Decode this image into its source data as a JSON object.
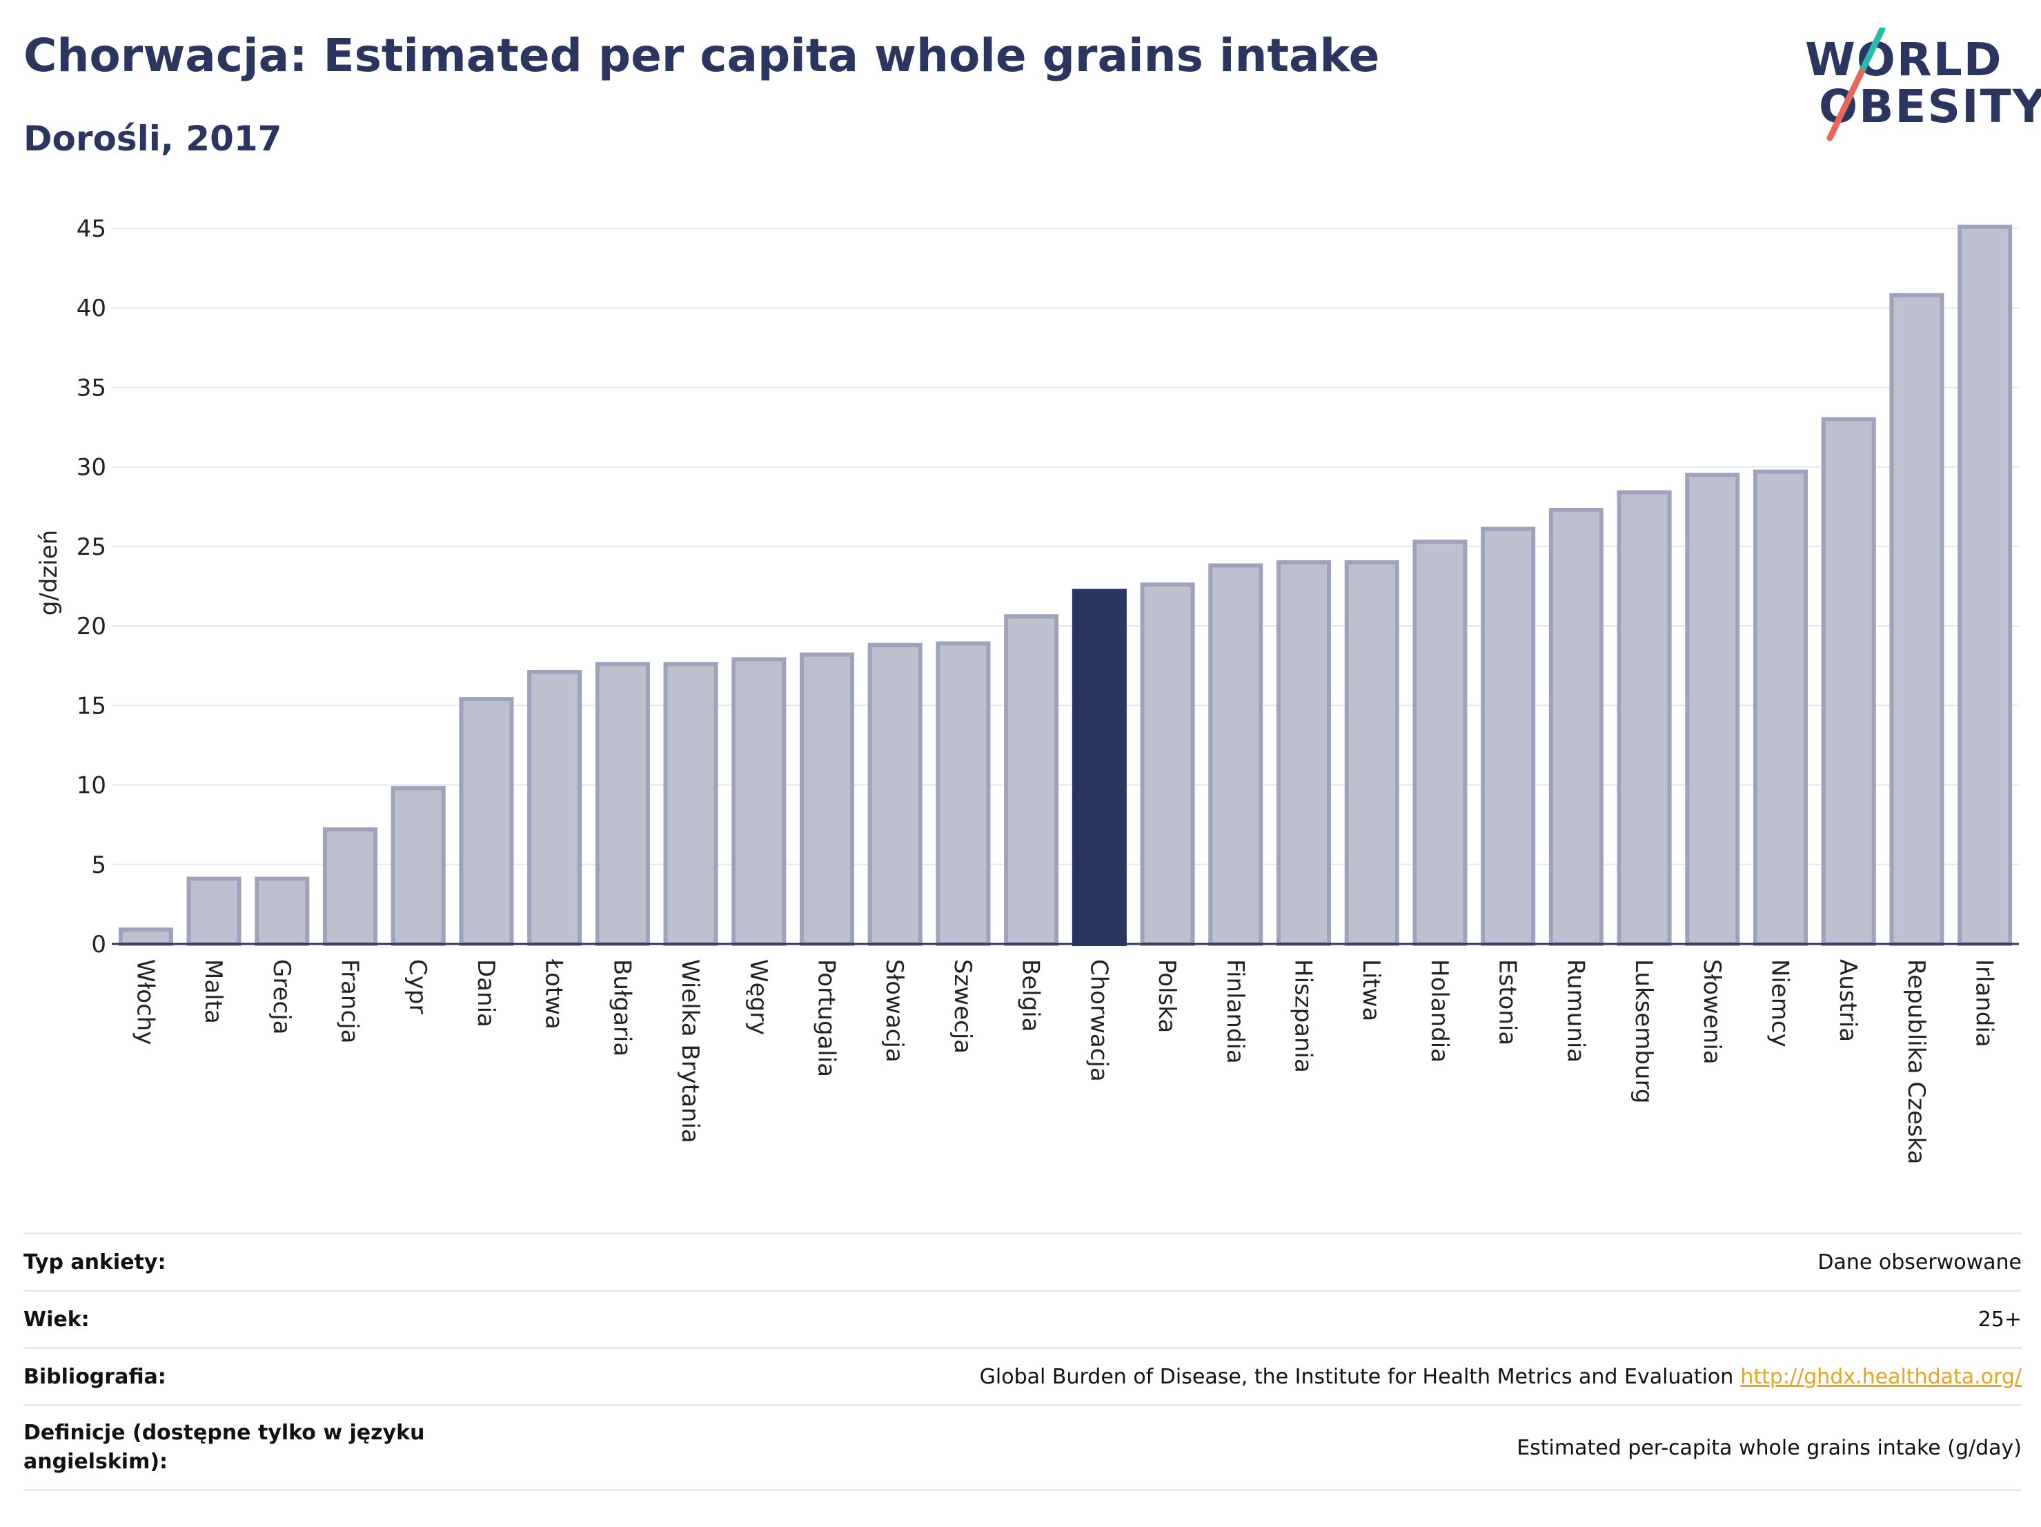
{
  "header": {
    "title": "Chorwacja: Estimated per capita whole grains intake",
    "subtitle": "Dorośli, 2017"
  },
  "logo": {
    "line1": "WORLD",
    "line2": "OBESITY",
    "colors": {
      "text": "#2a3560",
      "slash_top": "#2bbbad",
      "slash_bottom": "#e8675a"
    }
  },
  "colors": {
    "bar": "#bcc0cf",
    "bar_border": "#9ea3bb",
    "highlight": "#2a3560",
    "grid": "#e6e6ee",
    "axis": "#2a3560",
    "link": "#e7a321"
  },
  "chart_data": {
    "type": "bar",
    "ylabel": "g/dzień",
    "ylim": [
      0,
      45
    ],
    "yticks": [
      0,
      5,
      10,
      15,
      20,
      25,
      30,
      35,
      40,
      45
    ],
    "grid": true,
    "highlight": "Chorwacja",
    "categories": [
      "Włochy",
      "Malta",
      "Grecja",
      "Francja",
      "Cypr",
      "Dania",
      "Łotwa",
      "Bułgaria",
      "Wielka Brytania",
      "Węgry",
      "Portugalia",
      "Słowacja",
      "Szwecja",
      "Belgia",
      "Chorwacja",
      "Polska",
      "Finlandia",
      "Hiszpania",
      "Litwa",
      "Holandia",
      "Estonia",
      "Rumunia",
      "Luksemburg",
      "Słowenia",
      "Niemcy",
      "Austria",
      "Republika Czeska",
      "Irlandia"
    ],
    "values": [
      0.9,
      4.1,
      4.1,
      7.2,
      9.8,
      15.4,
      17.1,
      17.6,
      17.6,
      17.9,
      18.2,
      18.8,
      18.9,
      20.6,
      22.2,
      22.6,
      23.8,
      24.0,
      24.0,
      25.3,
      26.1,
      27.3,
      28.4,
      29.5,
      29.7,
      33.0,
      40.8,
      45.1
    ]
  },
  "info": {
    "rows": [
      {
        "label": "Typ ankiety:",
        "value": "Dane obserwowane"
      },
      {
        "label": "Wiek:",
        "value": "25+"
      },
      {
        "label": "Bibliografia:",
        "value": "Global Burden of Disease, the Institute for Health Metrics and Evaluation",
        "link": "http://ghdx.healthdata.org/"
      },
      {
        "label": "Definicje (dostępne tylko w języku angielskim):",
        "value": "Estimated per-capita whole grains intake (g/day)"
      }
    ]
  }
}
